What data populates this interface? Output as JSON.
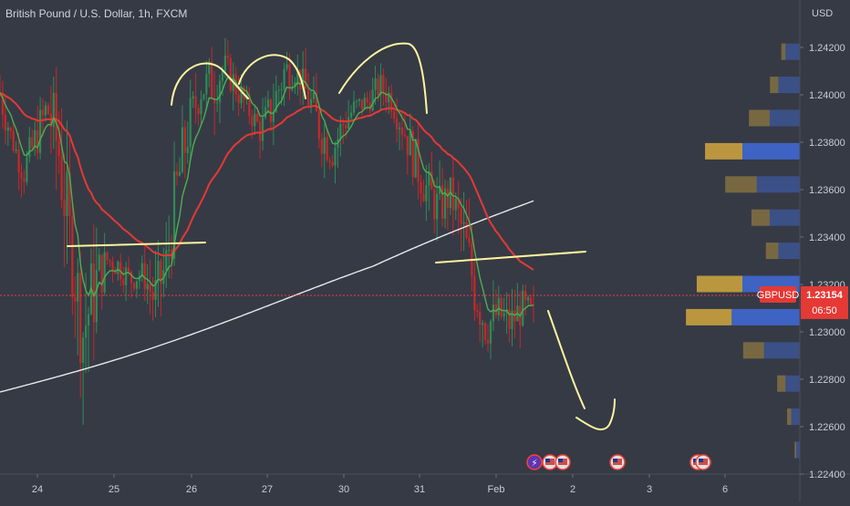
{
  "chart_data": {
    "type": "candlestick",
    "title": "British Pound / U.S. Dollar, 1h, FXCM",
    "currency_label": "USD",
    "symbol": "GBPUSD",
    "last_price": "1.23154",
    "countdown": "06:50",
    "y_ticks": [
      "1.24200",
      "1.24000",
      "1.23800",
      "1.23600",
      "1.23400",
      "1.23200",
      "1.23000",
      "1.22800",
      "1.22600",
      "1.22400"
    ],
    "x_ticks": [
      "24",
      "25",
      "26",
      "27",
      "30",
      "31",
      "Feb",
      "2",
      "3",
      "6"
    ],
    "ylim": [
      1.224,
      1.243
    ],
    "price_path": [
      [
        1.239,
        1.2412
      ],
      [
        1.2376,
        1.2386
      ],
      [
        1.236,
        1.2375
      ],
      [
        1.2372,
        1.239
      ],
      [
        1.2384,
        1.2405
      ],
      [
        1.2352,
        1.24
      ],
      [
        1.2318,
        1.2352
      ],
      [
        1.2278,
        1.2322
      ],
      [
        1.23,
        1.2338
      ],
      [
        1.2325,
        1.2336
      ],
      [
        1.2322,
        1.2334
      ],
      [
        1.2316,
        1.2328
      ],
      [
        1.232,
        1.233
      ],
      [
        1.2303,
        1.2325
      ],
      [
        1.2315,
        1.234
      ],
      [
        1.2345,
        1.238
      ],
      [
        1.2378,
        1.24
      ],
      [
        1.2395,
        1.241
      ],
      [
        1.2392,
        1.242
      ],
      [
        1.2405,
        1.2418
      ],
      [
        1.2395,
        1.241
      ],
      [
        1.2388,
        1.2398
      ],
      [
        1.2378,
        1.2392
      ],
      [
        1.2385,
        1.2405
      ],
      [
        1.24,
        1.242
      ],
      [
        1.2405,
        1.2415
      ],
      [
        1.239,
        1.2408
      ],
      [
        1.2375,
        1.2395
      ],
      [
        1.2368,
        1.2383
      ],
      [
        1.238,
        1.2397
      ],
      [
        1.239,
        1.24
      ],
      [
        1.2392,
        1.2402
      ],
      [
        1.2398,
        1.241
      ],
      [
        1.2392,
        1.2405
      ],
      [
        1.2378,
        1.2395
      ],
      [
        1.2362,
        1.2382
      ],
      [
        1.235,
        1.237
      ],
      [
        1.2342,
        1.2362
      ],
      [
        1.235,
        1.2366
      ],
      [
        1.233,
        1.2355
      ],
      [
        1.2305,
        1.2335
      ],
      [
        1.2292,
        1.2312
      ],
      [
        1.23,
        1.2316
      ],
      [
        1.2295,
        1.2312
      ],
      [
        1.2302,
        1.2318
      ],
      [
        1.2298,
        1.2314
      ]
    ],
    "volume_profile": [
      {
        "price": 1.2418,
        "up": 0.05,
        "down": 0.2
      },
      {
        "price": 1.2404,
        "up": 0.1,
        "down": 0.3
      },
      {
        "price": 1.239,
        "up": 0.25,
        "down": 0.42
      },
      {
        "price": 1.2376,
        "up": 0.45,
        "down": 0.8
      },
      {
        "price": 1.2362,
        "up": 0.38,
        "down": 0.6
      },
      {
        "price": 1.2348,
        "up": 0.22,
        "down": 0.42
      },
      {
        "price": 1.2334,
        "up": 0.15,
        "down": 0.3
      },
      {
        "price": 1.232,
        "up": 0.55,
        "down": 0.8
      },
      {
        "price": 1.2306,
        "up": 0.55,
        "down": 0.95
      },
      {
        "price": 1.2292,
        "up": 0.25,
        "down": 0.5
      },
      {
        "price": 1.2278,
        "up": 0.1,
        "down": 0.2
      },
      {
        "price": 1.2264,
        "up": 0.05,
        "down": 0.12
      },
      {
        "price": 1.225,
        "up": 0.02,
        "down": 0.05
      }
    ],
    "colors": {
      "background": "#363a45",
      "up": "#26a69a",
      "down": "#ef5350",
      "ema_fast": "#4caf50",
      "ema_mid": "#e53935",
      "ema_slow": "#e9e9e9",
      "annotation": "#fff59d",
      "vp_up": "#c9a23e",
      "vp_down": "#3f65c9",
      "price_line": "#f23645"
    },
    "grid": false
  }
}
